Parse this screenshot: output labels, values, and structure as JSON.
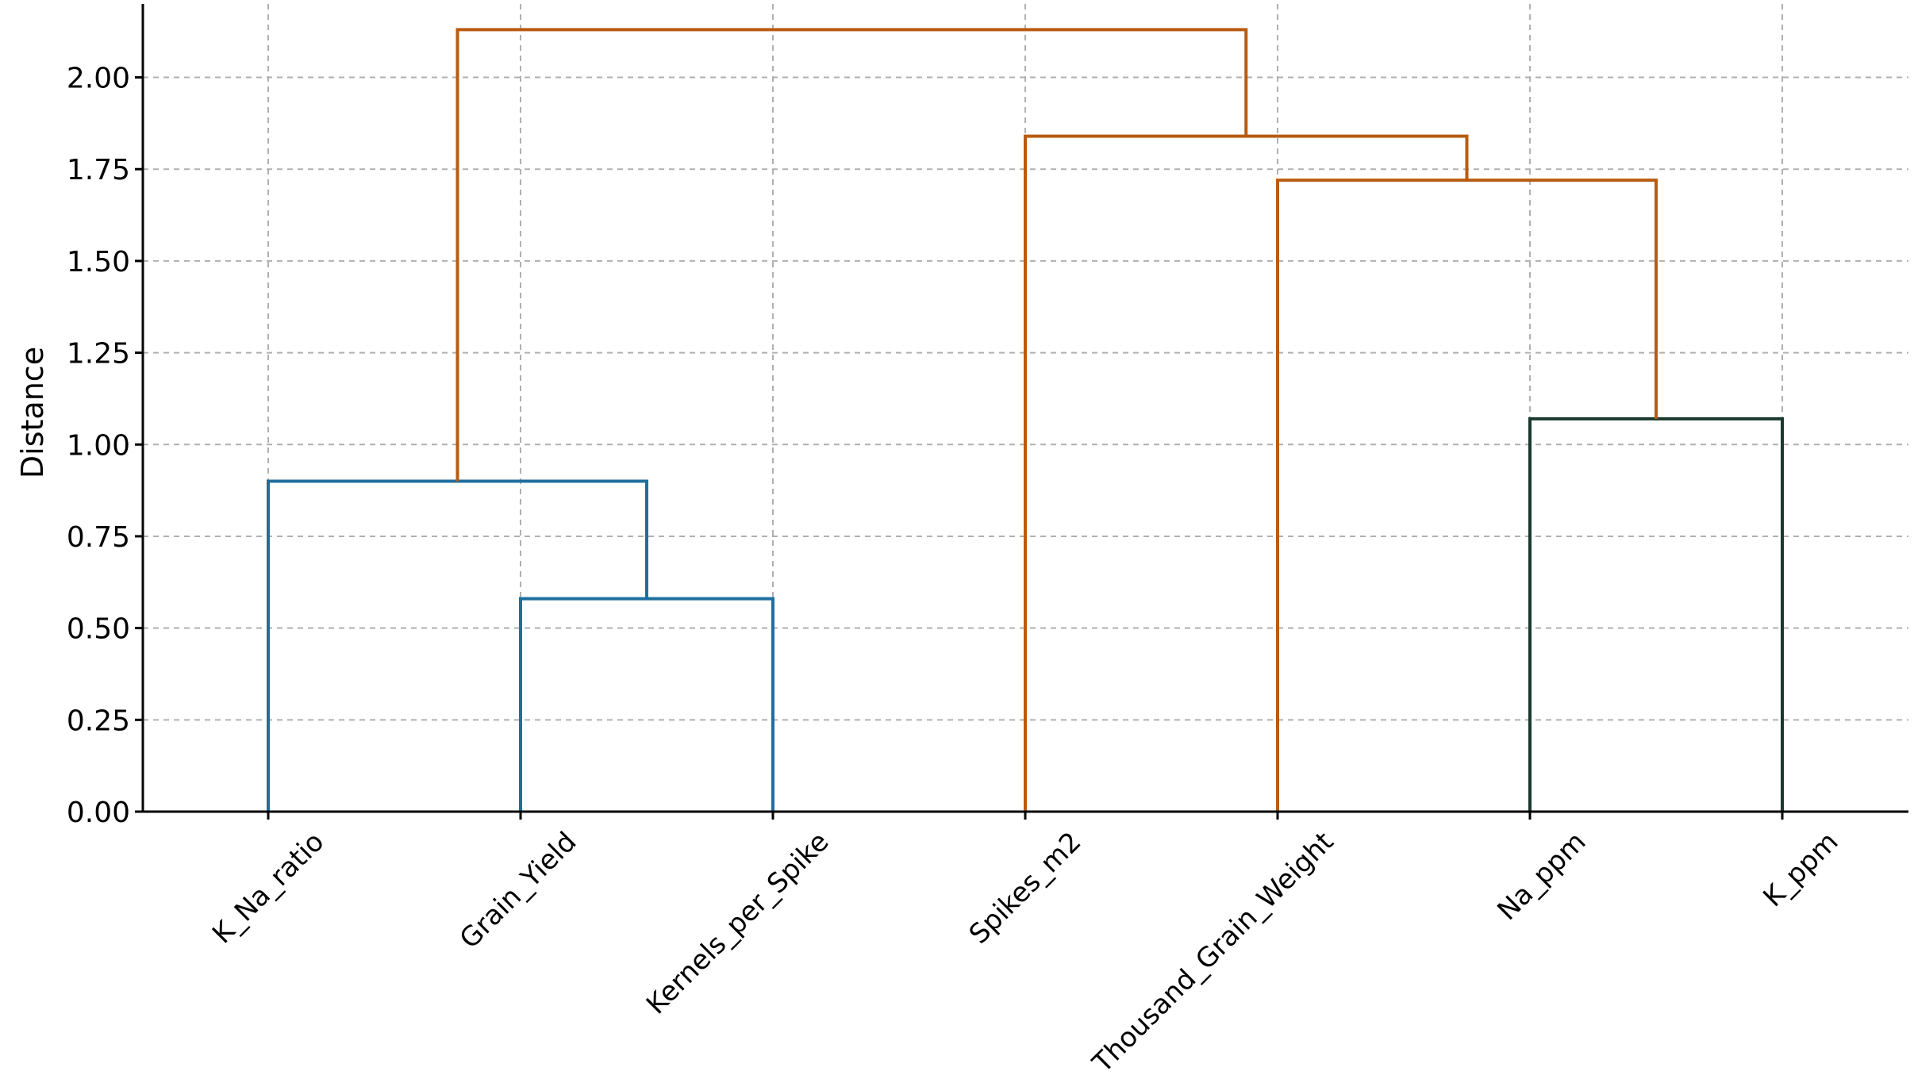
{
  "chart_data": {
    "type": "dendrogram",
    "ylabel": "Distance",
    "ylim": [
      0,
      2.2
    ],
    "yticks": [
      "0.00",
      "0.25",
      "0.50",
      "0.75",
      "1.00",
      "1.25",
      "1.50",
      "1.75",
      "2.00"
    ],
    "grid": true,
    "leaves": [
      "K_Na_ratio",
      "Grain_Yield",
      "Kernels_per_Spike",
      "Spikes_m2",
      "Thousand_Grain_Weight",
      "Na_ppm",
      "K_ppm"
    ],
    "colors": {
      "cluster_blue": "#1f6f9e",
      "cluster_dark": "#1a3a2e",
      "above_threshold": "#b85c12"
    },
    "links": [
      {
        "left": "Grain_Yield",
        "right": "Kernels_per_Spike",
        "height": 0.58,
        "color": "cluster_blue"
      },
      {
        "left": "K_Na_ratio",
        "right": "Grain_Yield+Kernels_per_Spike",
        "height": 0.9,
        "color": "cluster_blue"
      },
      {
        "left": "Na_ppm",
        "right": "K_ppm",
        "height": 1.07,
        "color": "cluster_dark"
      },
      {
        "left": "Thousand_Grain_Weight",
        "right": "Na_ppm+K_ppm",
        "height": 1.72,
        "color": "above_threshold"
      },
      {
        "left": "Spikes_m2",
        "right": "Thousand_Grain_Weight+Na_ppm+K_ppm",
        "height": 1.84,
        "color": "above_threshold"
      },
      {
        "left": "K_Na_ratio+Grain_Yield+Kernels_per_Spike",
        "right": "Spikes_m2+Thousand_Grain_Weight+Na_ppm+K_ppm",
        "height": 2.13,
        "color": "above_threshold"
      }
    ]
  }
}
